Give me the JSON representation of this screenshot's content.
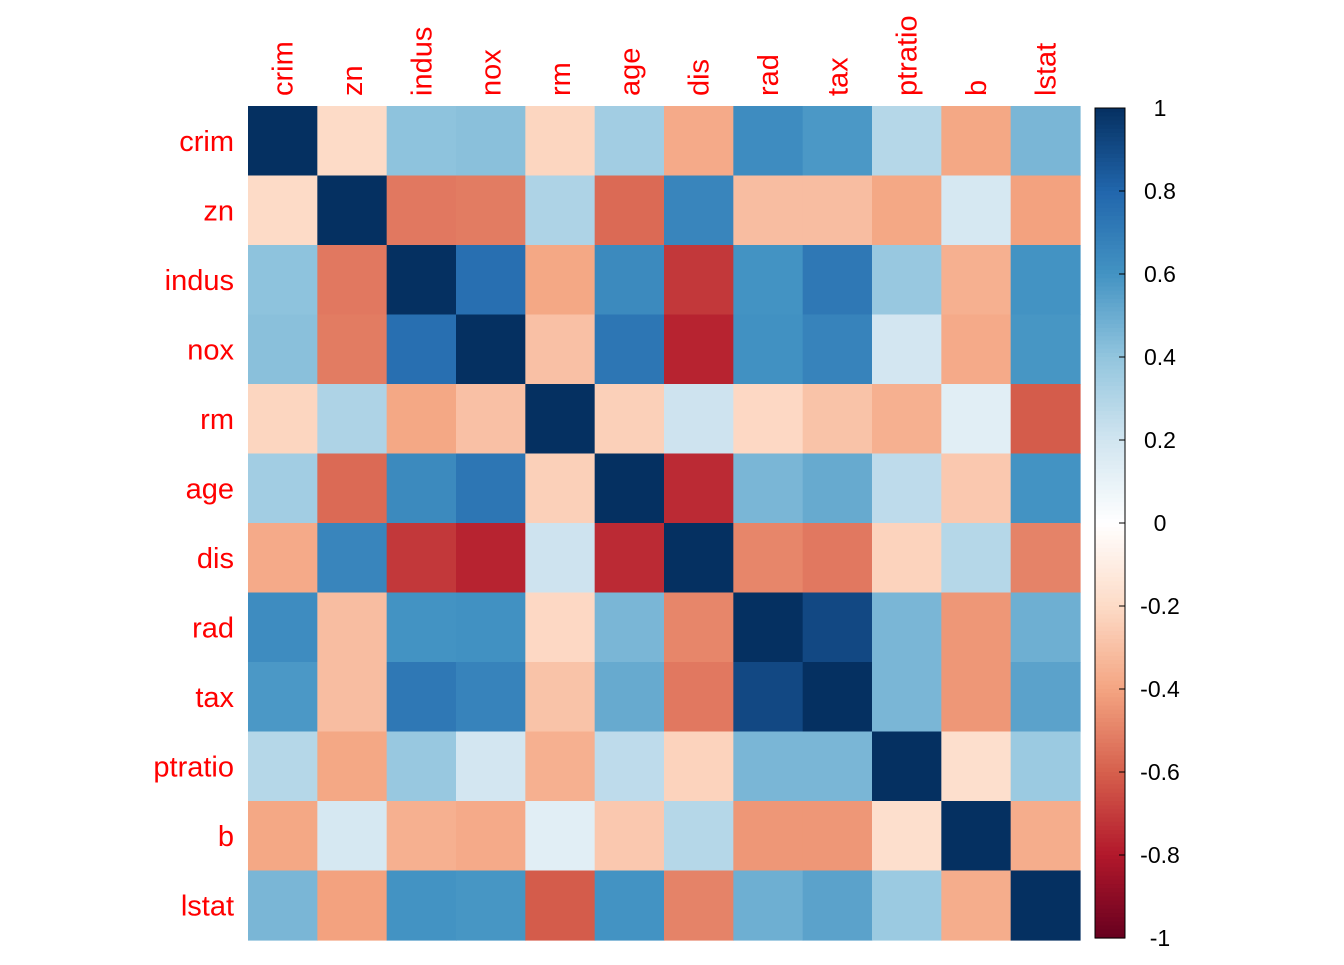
{
  "chart_data": {
    "type": "heatmap",
    "title": "",
    "variables": [
      "crim",
      "zn",
      "indus",
      "nox",
      "rm",
      "age",
      "dis",
      "rad",
      "tax",
      "ptratio",
      "b",
      "lstat"
    ],
    "matrix": [
      [
        1.0,
        -0.2,
        0.41,
        0.42,
        -0.22,
        0.35,
        -0.38,
        0.63,
        0.58,
        0.29,
        -0.39,
        0.46
      ],
      [
        -0.2,
        1.0,
        -0.53,
        -0.52,
        0.31,
        -0.57,
        0.66,
        -0.31,
        -0.31,
        -0.39,
        0.18,
        -0.41
      ],
      [
        0.41,
        -0.53,
        1.0,
        0.76,
        -0.39,
        0.64,
        -0.71,
        0.6,
        0.72,
        0.38,
        -0.36,
        0.6
      ],
      [
        0.42,
        -0.52,
        0.76,
        1.0,
        -0.3,
        0.73,
        -0.77,
        0.61,
        0.67,
        0.19,
        -0.38,
        0.59
      ],
      [
        -0.22,
        0.31,
        -0.39,
        -0.3,
        1.0,
        -0.24,
        0.21,
        -0.21,
        -0.29,
        -0.36,
        0.13,
        -0.61
      ],
      [
        0.35,
        -0.57,
        0.64,
        0.73,
        -0.24,
        1.0,
        -0.75,
        0.46,
        0.51,
        0.26,
        -0.27,
        0.6
      ],
      [
        -0.38,
        0.66,
        -0.71,
        -0.77,
        0.21,
        -0.75,
        1.0,
        -0.49,
        -0.53,
        -0.23,
        0.29,
        -0.5
      ],
      [
        0.63,
        -0.31,
        0.6,
        0.61,
        -0.21,
        0.46,
        -0.49,
        1.0,
        0.91,
        0.46,
        -0.44,
        0.49
      ],
      [
        0.58,
        -0.31,
        0.72,
        0.67,
        -0.29,
        0.51,
        -0.53,
        0.91,
        1.0,
        0.46,
        -0.44,
        0.54
      ],
      [
        0.29,
        -0.39,
        0.38,
        0.19,
        -0.36,
        0.26,
        -0.23,
        0.46,
        0.46,
        1.0,
        -0.18,
        0.37
      ],
      [
        -0.39,
        0.18,
        -0.36,
        -0.38,
        0.13,
        -0.27,
        0.29,
        -0.44,
        -0.44,
        -0.18,
        1.0,
        -0.37
      ],
      [
        0.46,
        -0.41,
        0.6,
        0.59,
        -0.61,
        0.6,
        -0.5,
        0.49,
        0.54,
        0.37,
        -0.37,
        1.0
      ]
    ],
    "colorbar": {
      "range": [
        -1,
        1
      ],
      "ticks": [
        "1",
        "0.8",
        "0.6",
        "0.4",
        "0.2",
        "0",
        "-0.2",
        "-0.4",
        "-0.6",
        "-0.8",
        "-1"
      ],
      "colors": [
        "#67001F",
        "#B2182B",
        "#D6604D",
        "#F4A582",
        "#FDDBC7",
        "#FFFFFF",
        "#D1E5F0",
        "#92C5DE",
        "#4393C3",
        "#2166AC",
        "#053061"
      ]
    },
    "label_color": "#FF0000",
    "grid": false
  }
}
